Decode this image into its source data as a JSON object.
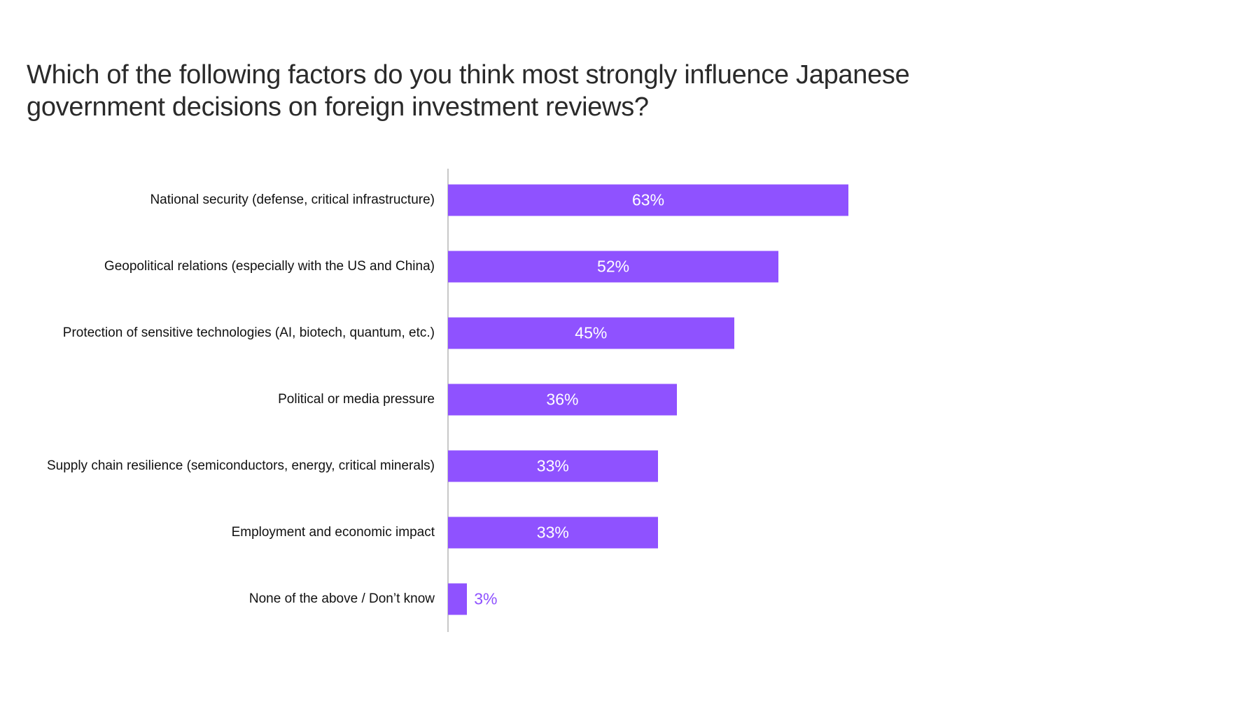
{
  "chart_data": {
    "type": "bar",
    "orientation": "horizontal",
    "title": "Which of the following factors do you think most strongly influence Japanese government decisions on foreign investment reviews?",
    "categories": [
      "National security (defense, critical infrastructure)",
      "Geopolitical relations (especially with the US and China)",
      "Protection of sensitive technologies (AI, biotech, quantum, etc.)",
      "Political or media pressure",
      "Supply chain resilience (semiconductors, energy, critical minerals)",
      "Employment and economic impact",
      "None of the above / Don’t know"
    ],
    "values": [
      63,
      52,
      45,
      36,
      33,
      33,
      3
    ],
    "value_labels": [
      "63%",
      "52%",
      "45%",
      "36%",
      "33%",
      "33%",
      "3%"
    ],
    "xlabel": "",
    "ylabel": "",
    "xlim": [
      0,
      100
    ],
    "grid": false,
    "bar_color": "#8f52ff"
  }
}
